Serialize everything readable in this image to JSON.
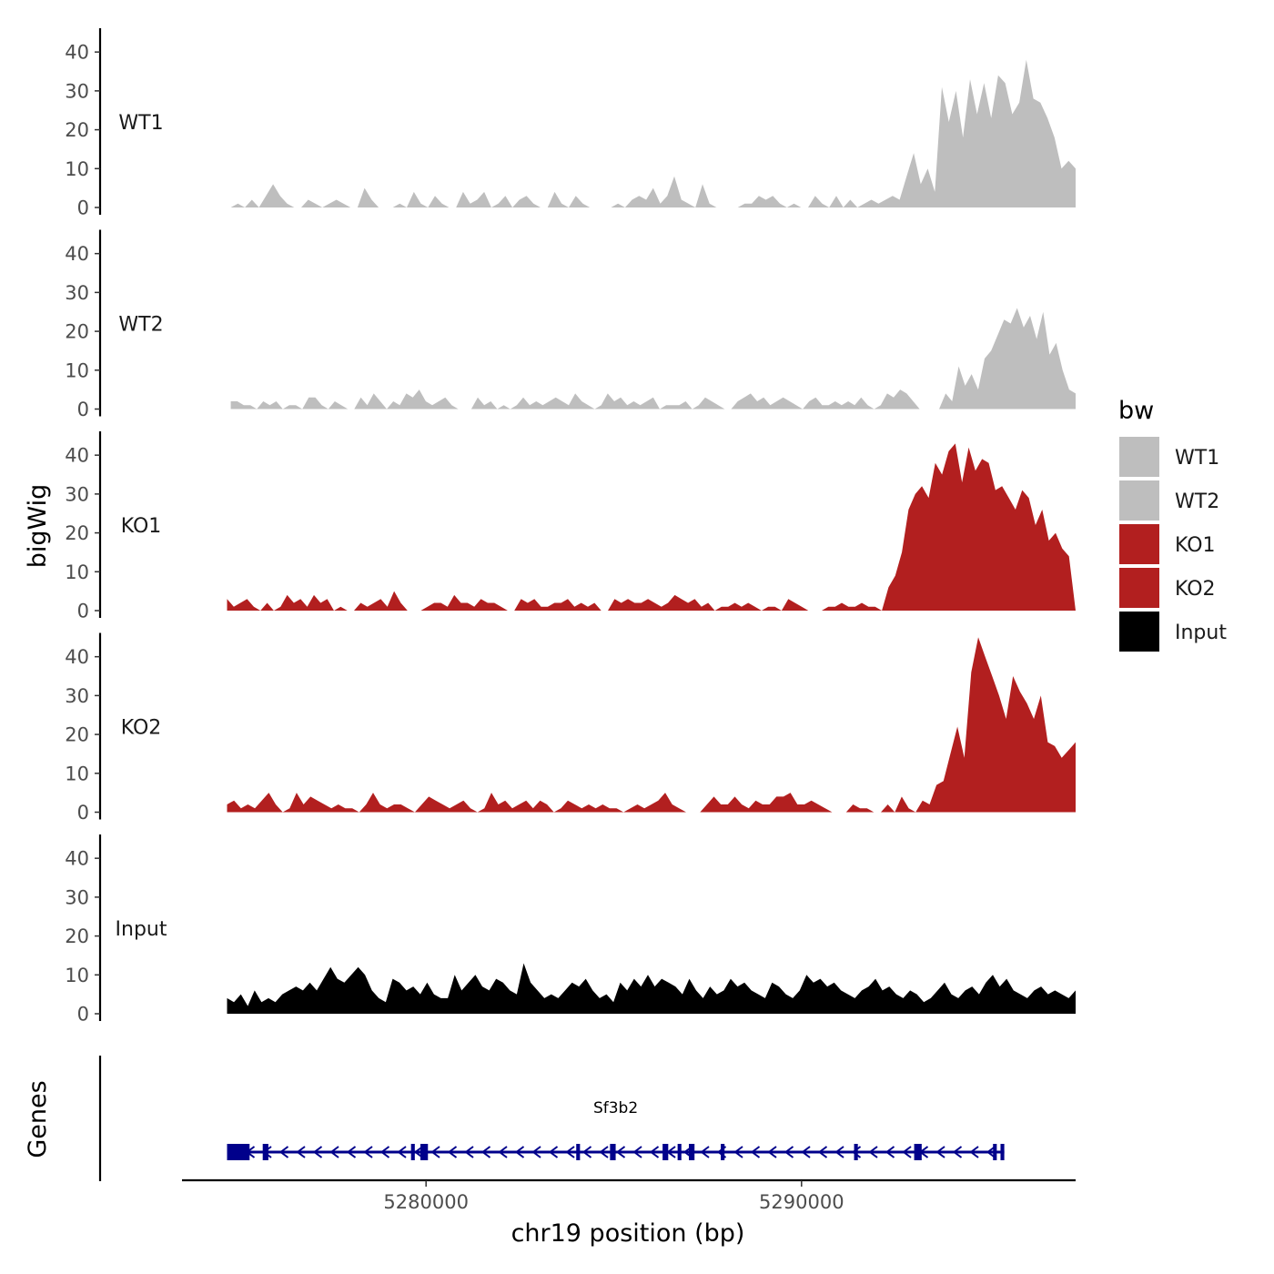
{
  "chart_data": {
    "type": "area",
    "ylabel": "bigWig",
    "xlabel": "chr19 position (bp)",
    "xlim": [
      5273500,
      5297300
    ],
    "ylim": [
      0,
      48
    ],
    "yticks": [
      0,
      10,
      20,
      30,
      40
    ],
    "xticks": [
      5280000,
      5290000
    ],
    "xtick_labels": [
      "5280000",
      "5290000"
    ],
    "legend": {
      "title": "bw",
      "position": "right",
      "entries": [
        {
          "name": "WT1",
          "color": "#bebebe"
        },
        {
          "name": "WT2",
          "color": "#bebebe"
        },
        {
          "name": "KO1",
          "color": "#b21f1f"
        },
        {
          "name": "KO2",
          "color": "#b21f1f"
        },
        {
          "name": "Input",
          "color": "#000000"
        }
      ]
    },
    "series": [
      {
        "name": "WT1",
        "color": "#bebebe",
        "x_start": 5274800,
        "x_end": 5297300,
        "values": [
          0,
          1,
          0,
          2,
          0,
          3,
          6,
          3,
          1,
          0,
          0,
          2,
          1,
          0,
          1,
          2,
          1,
          0,
          0,
          5,
          2,
          0,
          0,
          0,
          1,
          0,
          4,
          1,
          0,
          3,
          1,
          0,
          0,
          4,
          1,
          2,
          4,
          0,
          1,
          3,
          0,
          2,
          3,
          1,
          0,
          0,
          4,
          1,
          0,
          3,
          1,
          0,
          0,
          0,
          0,
          1,
          0,
          2,
          3,
          2,
          5,
          1,
          3,
          8,
          2,
          1,
          0,
          6,
          1,
          0,
          0,
          0,
          0,
          1,
          1,
          3,
          2,
          3,
          1,
          0,
          1,
          0,
          0,
          3,
          1,
          0,
          3,
          0,
          2,
          0,
          1,
          2,
          1,
          2,
          3,
          2,
          8,
          14,
          6,
          10,
          4,
          31,
          22,
          30,
          18,
          33,
          24,
          32,
          23,
          34,
          32,
          24,
          27,
          38,
          28,
          27,
          23,
          18,
          10,
          12,
          10
        ]
      },
      {
        "name": "WT2",
        "color": "#bebebe",
        "x_start": 5274800,
        "x_end": 5297300,
        "values": [
          2,
          2,
          1,
          1,
          0,
          2,
          1,
          2,
          0,
          1,
          1,
          0,
          3,
          3,
          1,
          0,
          2,
          1,
          0,
          0,
          3,
          1,
          4,
          2,
          0,
          2,
          1,
          4,
          3,
          5,
          2,
          1,
          2,
          3,
          1,
          0,
          0,
          0,
          3,
          1,
          2,
          0,
          1,
          0,
          1,
          3,
          1,
          2,
          1,
          2,
          3,
          2,
          1,
          4,
          2,
          1,
          0,
          1,
          4,
          2,
          3,
          1,
          2,
          1,
          2,
          3,
          0,
          1,
          1,
          1,
          2,
          0,
          1,
          3,
          2,
          1,
          0,
          0,
          2,
          3,
          4,
          2,
          3,
          1,
          2,
          3,
          2,
          1,
          0,
          2,
          3,
          1,
          1,
          2,
          1,
          2,
          1,
          3,
          1,
          0,
          1,
          4,
          3,
          5,
          4,
          2,
          0,
          0,
          0,
          0,
          4,
          2,
          11,
          6,
          9,
          5,
          13,
          15,
          19,
          23,
          22,
          26,
          21,
          24,
          18,
          25,
          14,
          17,
          10,
          5,
          4
        ]
      },
      {
        "name": "KO1",
        "color": "#b21f1f",
        "x_start": 5274700,
        "x_end": 5297300,
        "values": [
          3,
          1,
          2,
          3,
          1,
          0,
          2,
          0,
          1,
          4,
          2,
          3,
          1,
          4,
          2,
          3,
          0,
          1,
          0,
          0,
          2,
          1,
          2,
          3,
          1,
          5,
          2,
          0,
          0,
          0,
          1,
          2,
          2,
          1,
          4,
          2,
          2,
          1,
          3,
          2,
          2,
          1,
          0,
          0,
          3,
          2,
          3,
          1,
          1,
          2,
          2,
          3,
          1,
          2,
          1,
          2,
          0,
          0,
          3,
          2,
          3,
          2,
          2,
          3,
          2,
          1,
          2,
          4,
          3,
          2,
          3,
          1,
          2,
          0,
          1,
          1,
          2,
          1,
          2,
          1,
          0,
          1,
          1,
          0,
          3,
          2,
          1,
          0,
          0,
          0,
          1,
          1,
          2,
          1,
          1,
          2,
          1,
          1,
          0,
          6,
          9,
          15,
          26,
          30,
          32,
          29,
          38,
          35,
          41,
          43,
          33,
          42,
          36,
          39,
          38,
          31,
          32,
          29,
          26,
          31,
          29,
          22,
          26,
          18,
          20,
          16,
          14,
          0
        ]
      },
      {
        "name": "KO2",
        "color": "#b21f1f",
        "x_start": 5274700,
        "x_end": 5297300,
        "values": [
          2,
          3,
          1,
          2,
          1,
          3,
          5,
          2,
          0,
          1,
          5,
          2,
          4,
          3,
          2,
          1,
          2,
          1,
          1,
          0,
          2,
          5,
          2,
          1,
          2,
          2,
          1,
          0,
          2,
          4,
          3,
          2,
          1,
          2,
          3,
          1,
          0,
          1,
          5,
          2,
          3,
          1,
          2,
          3,
          1,
          3,
          2,
          0,
          1,
          3,
          2,
          1,
          2,
          1,
          2,
          1,
          1,
          0,
          1,
          2,
          1,
          2,
          3,
          5,
          2,
          1,
          0,
          0,
          0,
          2,
          4,
          2,
          2,
          4,
          2,
          1,
          3,
          2,
          2,
          4,
          4,
          5,
          2,
          2,
          3,
          2,
          1,
          0,
          0,
          0,
          2,
          1,
          1,
          0,
          0,
          2,
          0,
          4,
          1,
          0,
          3,
          2,
          7,
          8,
          15,
          22,
          14,
          36,
          45,
          40,
          35,
          30,
          24,
          35,
          31,
          28,
          24,
          30,
          18,
          17,
          14,
          16,
          18
        ]
      },
      {
        "name": "Input",
        "color": "#000000",
        "x_start": 5274700,
        "x_end": 5297300,
        "values": [
          4,
          3,
          5,
          2,
          6,
          3,
          4,
          3,
          5,
          6,
          7,
          6,
          8,
          6,
          9,
          12,
          9,
          8,
          10,
          12,
          10,
          6,
          4,
          3,
          9,
          8,
          6,
          7,
          5,
          8,
          5,
          4,
          4,
          10,
          6,
          8,
          10,
          7,
          6,
          9,
          8,
          6,
          5,
          13,
          8,
          6,
          4,
          5,
          4,
          6,
          8,
          7,
          9,
          6,
          4,
          5,
          3,
          8,
          6,
          9,
          7,
          10,
          7,
          9,
          8,
          7,
          5,
          9,
          6,
          4,
          7,
          5,
          6,
          9,
          7,
          8,
          6,
          5,
          4,
          8,
          7,
          5,
          4,
          6,
          10,
          8,
          9,
          7,
          8,
          6,
          5,
          4,
          6,
          7,
          9,
          6,
          7,
          5,
          4,
          6,
          5,
          3,
          4,
          6,
          8,
          5,
          4,
          6,
          7,
          5,
          8,
          10,
          7,
          9,
          6,
          5,
          4,
          6,
          7,
          5,
          6,
          5,
          4,
          6
        ]
      }
    ],
    "gene_track": {
      "ylabel": "Genes",
      "gene_name": "Sf3b2",
      "start": 5274700,
      "end": 5295400,
      "strand": "-",
      "color": "#00008b",
      "exons": [
        [
          5274700,
          5275300
        ],
        [
          5275650,
          5275800
        ],
        [
          5279600,
          5279700
        ],
        [
          5279850,
          5280050
        ],
        [
          5284000,
          5284100
        ],
        [
          5284900,
          5285050
        ],
        [
          5286300,
          5286450
        ],
        [
          5286700,
          5286800
        ],
        [
          5287000,
          5287150
        ],
        [
          5287850,
          5287950
        ],
        [
          5291400,
          5291500
        ],
        [
          5293000,
          5293200
        ],
        [
          5295100,
          5295200
        ],
        [
          5295300,
          5295400
        ]
      ]
    }
  }
}
